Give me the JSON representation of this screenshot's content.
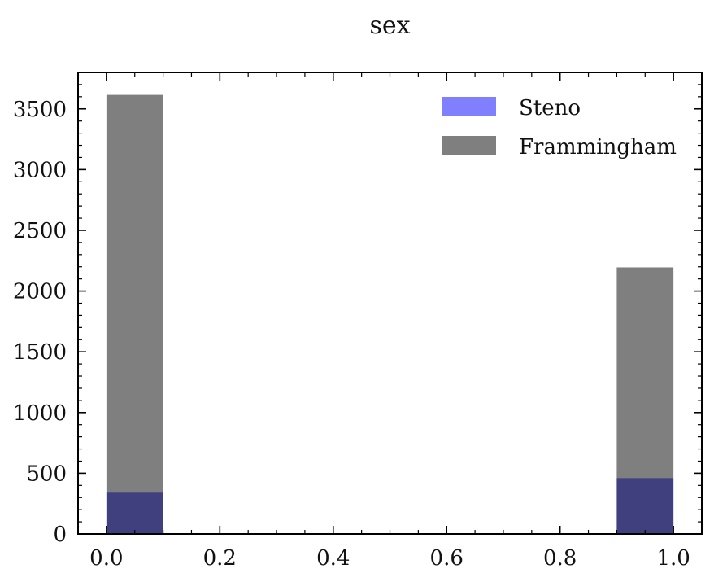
{
  "chart_data": {
    "type": "bar",
    "title": "sex",
    "xlabel": "",
    "ylabel": "",
    "xlim": [
      -0.05,
      1.05
    ],
    "ylim": [
      0,
      3800
    ],
    "x_ticks": [
      0.0,
      0.2,
      0.4,
      0.6,
      0.8,
      1.0
    ],
    "x_tick_labels": [
      "0.0",
      "0.2",
      "0.4",
      "0.6",
      "0.8",
      "1.0"
    ],
    "y_ticks": [
      0,
      500,
      1000,
      1500,
      2000,
      2500,
      3000,
      3500
    ],
    "y_tick_labels": [
      "0",
      "500",
      "1000",
      "1500",
      "2000",
      "2500",
      "3000",
      "3500"
    ],
    "bin_width": 0.1,
    "grid": false,
    "legend_position": "top-right",
    "series": [
      {
        "name": "Steno",
        "color": "#8080ff",
        "opacity": 1.0,
        "bins": [
          {
            "x0": 0.0,
            "x1": 0.1,
            "value": 340
          },
          {
            "x0": 0.9,
            "x1": 1.0,
            "value": 460
          }
        ]
      },
      {
        "name": "Frammingham",
        "color": "#000000",
        "opacity": 0.5,
        "bins": [
          {
            "x0": 0.0,
            "x1": 0.1,
            "value": 3615
          },
          {
            "x0": 0.9,
            "x1": 1.0,
            "value": 2195
          }
        ]
      }
    ]
  }
}
